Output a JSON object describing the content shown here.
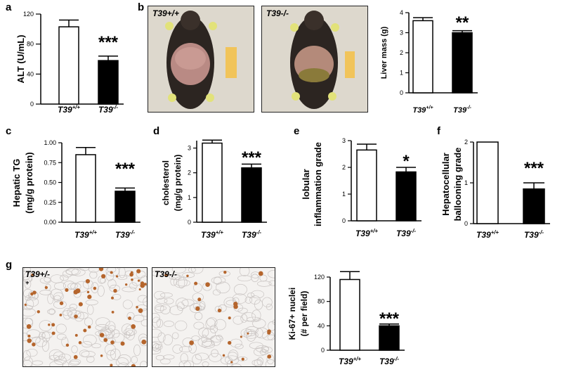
{
  "panel_labels": {
    "a": "a",
    "b": "b",
    "c": "c",
    "d": "d",
    "e": "e",
    "f": "f",
    "g": "g"
  },
  "photos": {
    "b_left_label": "T39+/+",
    "b_right_label": "T39-/-",
    "g_left_label": "T39+/-",
    "g_left_label_extra": "+",
    "g_right_label": "T39-/-"
  },
  "colors": {
    "wt_fill": "#ffffff",
    "ko_fill": "#000000",
    "axis": "#000000"
  },
  "chart_data": [
    {
      "id": "a",
      "type": "bar",
      "categories": [
        "T39+/+",
        "T39-/-"
      ],
      "values": [
        103,
        58
      ],
      "errors": [
        9,
        6
      ],
      "ylabel": "ALT (U/mL)",
      "ylim": [
        0,
        120
      ],
      "yticks": [
        "0",
        "40",
        "80",
        "120"
      ],
      "ytick_values": [
        0,
        40,
        80,
        120
      ],
      "significance": "***"
    },
    {
      "id": "b",
      "type": "bar",
      "categories": [
        "T39+/+",
        "T39-/-"
      ],
      "values": [
        3.6,
        3.0
      ],
      "errors": [
        0.15,
        0.1
      ],
      "ylabel": "Liver mass (g)",
      "ylim": [
        0,
        4
      ],
      "yticks": [
        "0",
        "1",
        "2",
        "3",
        "4"
      ],
      "ytick_values": [
        0,
        1,
        2,
        3,
        4
      ],
      "significance": "**"
    },
    {
      "id": "c",
      "type": "bar",
      "categories": [
        "T39+/+",
        "T39-/-"
      ],
      "values": [
        0.85,
        0.39
      ],
      "errors": [
        0.09,
        0.04
      ],
      "ylabel": "Hepatic TG",
      "ylabel2": "(mg/g protein)",
      "ylim": [
        0,
        1.0
      ],
      "yticks": [
        "0.00",
        "0.25",
        "0.50",
        "0.75",
        "1.00"
      ],
      "ytick_values": [
        0,
        0.25,
        0.5,
        0.75,
        1.0
      ],
      "significance": "***"
    },
    {
      "id": "d",
      "type": "bar",
      "categories": [
        "T39+/+",
        "T39-/-"
      ],
      "values": [
        3.2,
        2.2
      ],
      "errors": [
        0.12,
        0.15
      ],
      "ylabel": "cholesterol",
      "ylabel2": "(mg/g protein)",
      "ylim": [
        0,
        3.3
      ],
      "yticks": [
        "0",
        "1",
        "2",
        "3"
      ],
      "ytick_values": [
        0,
        1,
        2,
        3
      ],
      "significance": "***"
    },
    {
      "id": "e",
      "type": "bar",
      "categories": [
        "T39+/+",
        "T39-/-"
      ],
      "values": [
        2.65,
        1.83
      ],
      "errors": [
        0.22,
        0.17
      ],
      "ylabel": "lobular",
      "ylabel2": "inflammation grade",
      "ylim": [
        0,
        3
      ],
      "yticks": [
        "0",
        "1",
        "2",
        "3"
      ],
      "ytick_values": [
        0,
        1,
        2,
        3
      ],
      "significance": "*"
    },
    {
      "id": "f",
      "type": "bar",
      "categories": [
        "T39+/+",
        "T39-/-"
      ],
      "values": [
        2.0,
        0.85
      ],
      "errors": [
        0,
        0.15
      ],
      "ylabel": "Hepatocellular",
      "ylabel2": "ballooning grade",
      "ylim": [
        0,
        2
      ],
      "yticks": [
        "0",
        "1",
        "2"
      ],
      "ytick_values": [
        0,
        1,
        2
      ],
      "significance": "***"
    },
    {
      "id": "g",
      "type": "bar",
      "categories": [
        "T39+/+",
        "T39-/-"
      ],
      "values": [
        116,
        40
      ],
      "errors": [
        13,
        3
      ],
      "ylabel": "Ki-67+ nuclei",
      "ylabel2": "(# per field)",
      "ylim": [
        0,
        120
      ],
      "yticks": [
        "0",
        "40",
        "80",
        "120"
      ],
      "ytick_values": [
        0,
        40,
        80,
        120
      ],
      "significance": "***"
    }
  ]
}
